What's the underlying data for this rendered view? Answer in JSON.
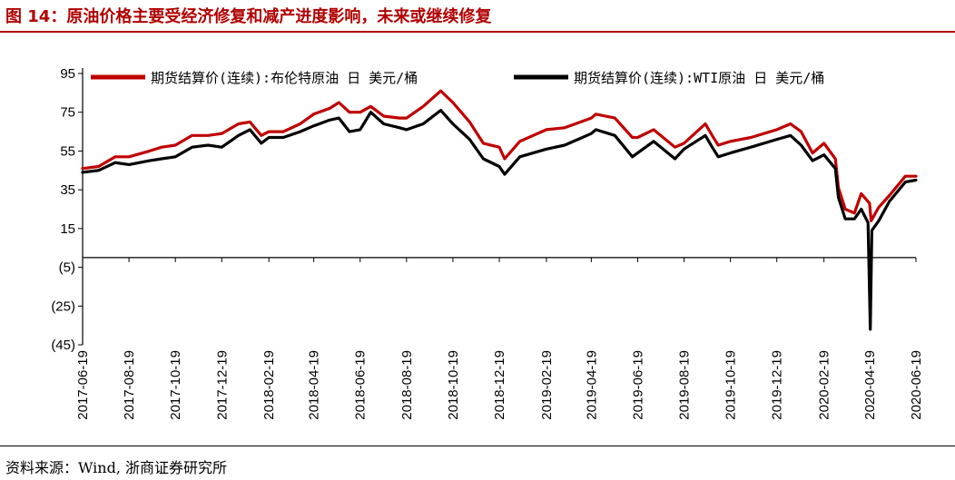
{
  "header": {
    "title": "图 14：原油价格主要受经济修复和减产进度影响，未来或继续修复"
  },
  "footer": {
    "source": "资料来源：Wind, 浙商证券研究所"
  },
  "chart_data": {
    "type": "line",
    "title": "",
    "xlabel": "",
    "ylabel": "",
    "ylim": [
      -45,
      95
    ],
    "y_ticks": [
      "95",
      "75",
      "55",
      "35",
      "15",
      "(5)",
      "(25)",
      "(45)"
    ],
    "y_tick_values": [
      95,
      75,
      55,
      35,
      15,
      -5,
      -25,
      -45
    ],
    "x_ticks": [
      "2017-06-19",
      "2017-08-19",
      "2017-10-19",
      "2017-12-19",
      "2018-02-19",
      "2018-04-19",
      "2018-06-19",
      "2018-08-19",
      "2018-10-19",
      "2018-12-19",
      "2019-02-19",
      "2019-04-19",
      "2019-06-19",
      "2019-08-19",
      "2019-10-19",
      "2019-12-19",
      "2020-02-19",
      "2020-04-19",
      "2020-06-19"
    ],
    "x_range": [
      "2017-06-19",
      "2020-06-19"
    ],
    "grid": false,
    "legend_position": "top",
    "colors": {
      "brent": "#c00000",
      "wti": "#000000"
    },
    "series": [
      {
        "name": "期货结算价(连续):布伦特原油  日  美元/桶",
        "color": "#c00000",
        "points": [
          [
            "2017-06-19",
            46
          ],
          [
            "2017-07-10",
            47
          ],
          [
            "2017-08-01",
            52
          ],
          [
            "2017-08-19",
            52
          ],
          [
            "2017-09-15",
            55
          ],
          [
            "2017-10-01",
            57
          ],
          [
            "2017-10-19",
            58
          ],
          [
            "2017-11-10",
            63
          ],
          [
            "2017-12-01",
            63
          ],
          [
            "2017-12-19",
            64
          ],
          [
            "2018-01-10",
            69
          ],
          [
            "2018-01-25",
            70
          ],
          [
            "2018-02-09",
            63
          ],
          [
            "2018-02-19",
            65
          ],
          [
            "2018-03-10",
            65
          ],
          [
            "2018-04-01",
            69
          ],
          [
            "2018-04-19",
            74
          ],
          [
            "2018-05-10",
            77
          ],
          [
            "2018-05-22",
            80
          ],
          [
            "2018-06-05",
            75
          ],
          [
            "2018-06-19",
            75
          ],
          [
            "2018-07-03",
            78
          ],
          [
            "2018-07-20",
            73
          ],
          [
            "2018-08-10",
            72
          ],
          [
            "2018-08-19",
            72
          ],
          [
            "2018-09-10",
            78
          ],
          [
            "2018-10-03",
            86
          ],
          [
            "2018-10-19",
            80
          ],
          [
            "2018-11-10",
            70
          ],
          [
            "2018-11-28",
            59
          ],
          [
            "2018-12-19",
            57
          ],
          [
            "2018-12-26",
            51
          ],
          [
            "2019-01-15",
            60
          ],
          [
            "2019-02-19",
            66
          ],
          [
            "2019-03-15",
            67
          ],
          [
            "2019-04-19",
            72
          ],
          [
            "2019-04-25",
            74
          ],
          [
            "2019-05-20",
            72
          ],
          [
            "2019-06-12",
            62
          ],
          [
            "2019-06-19",
            62
          ],
          [
            "2019-07-10",
            66
          ],
          [
            "2019-08-07",
            57
          ],
          [
            "2019-08-19",
            59
          ],
          [
            "2019-09-16",
            69
          ],
          [
            "2019-09-25",
            63
          ],
          [
            "2019-10-03",
            58
          ],
          [
            "2019-10-19",
            60
          ],
          [
            "2019-11-15",
            62
          ],
          [
            "2019-12-19",
            66
          ],
          [
            "2020-01-06",
            69
          ],
          [
            "2020-01-20",
            65
          ],
          [
            "2020-02-04",
            54
          ],
          [
            "2020-02-19",
            59
          ],
          [
            "2020-03-05",
            51
          ],
          [
            "2020-03-09",
            36
          ],
          [
            "2020-03-18",
            25
          ],
          [
            "2020-03-30",
            23
          ],
          [
            "2020-04-08",
            33
          ],
          [
            "2020-04-19",
            28
          ],
          [
            "2020-04-21",
            19
          ],
          [
            "2020-05-01",
            26
          ],
          [
            "2020-05-15",
            32
          ],
          [
            "2020-06-05",
            42
          ],
          [
            "2020-06-19",
            42
          ]
        ]
      },
      {
        "name": "期货结算价(连续):WTI原油  日  美元/桶",
        "color": "#000000",
        "points": [
          [
            "2017-06-19",
            44
          ],
          [
            "2017-07-10",
            45
          ],
          [
            "2017-08-01",
            49
          ],
          [
            "2017-08-19",
            48
          ],
          [
            "2017-09-15",
            50
          ],
          [
            "2017-10-01",
            51
          ],
          [
            "2017-10-19",
            52
          ],
          [
            "2017-11-10",
            57
          ],
          [
            "2017-12-01",
            58
          ],
          [
            "2017-12-19",
            57
          ],
          [
            "2018-01-10",
            63
          ],
          [
            "2018-01-25",
            66
          ],
          [
            "2018-02-09",
            59
          ],
          [
            "2018-02-19",
            62
          ],
          [
            "2018-03-10",
            62
          ],
          [
            "2018-04-01",
            65
          ],
          [
            "2018-04-19",
            68
          ],
          [
            "2018-05-10",
            71
          ],
          [
            "2018-05-22",
            72
          ],
          [
            "2018-06-05",
            65
          ],
          [
            "2018-06-19",
            66
          ],
          [
            "2018-07-03",
            75
          ],
          [
            "2018-07-20",
            69
          ],
          [
            "2018-08-10",
            67
          ],
          [
            "2018-08-19",
            66
          ],
          [
            "2018-09-10",
            69
          ],
          [
            "2018-10-03",
            76
          ],
          [
            "2018-10-19",
            69
          ],
          [
            "2018-11-10",
            61
          ],
          [
            "2018-11-28",
            51
          ],
          [
            "2018-12-19",
            47
          ],
          [
            "2018-12-26",
            43
          ],
          [
            "2019-01-15",
            52
          ],
          [
            "2019-02-19",
            56
          ],
          [
            "2019-03-15",
            58
          ],
          [
            "2019-04-19",
            64
          ],
          [
            "2019-04-25",
            66
          ],
          [
            "2019-05-20",
            63
          ],
          [
            "2019-06-12",
            52
          ],
          [
            "2019-06-19",
            54
          ],
          [
            "2019-07-10",
            60
          ],
          [
            "2019-08-07",
            51
          ],
          [
            "2019-08-19",
            56
          ],
          [
            "2019-09-16",
            63
          ],
          [
            "2019-09-25",
            57
          ],
          [
            "2019-10-03",
            52
          ],
          [
            "2019-10-19",
            54
          ],
          [
            "2019-11-15",
            57
          ],
          [
            "2019-12-19",
            61
          ],
          [
            "2020-01-06",
            63
          ],
          [
            "2020-01-20",
            58
          ],
          [
            "2020-02-04",
            50
          ],
          [
            "2020-02-19",
            53
          ],
          [
            "2020-03-05",
            46
          ],
          [
            "2020-03-09",
            31
          ],
          [
            "2020-03-18",
            20
          ],
          [
            "2020-03-30",
            20
          ],
          [
            "2020-04-08",
            25
          ],
          [
            "2020-04-17",
            18
          ],
          [
            "2020-04-20",
            -37
          ],
          [
            "2020-04-22",
            14
          ],
          [
            "2020-05-01",
            19
          ],
          [
            "2020-05-15",
            29
          ],
          [
            "2020-06-05",
            39
          ],
          [
            "2020-06-19",
            40
          ]
        ]
      }
    ]
  }
}
